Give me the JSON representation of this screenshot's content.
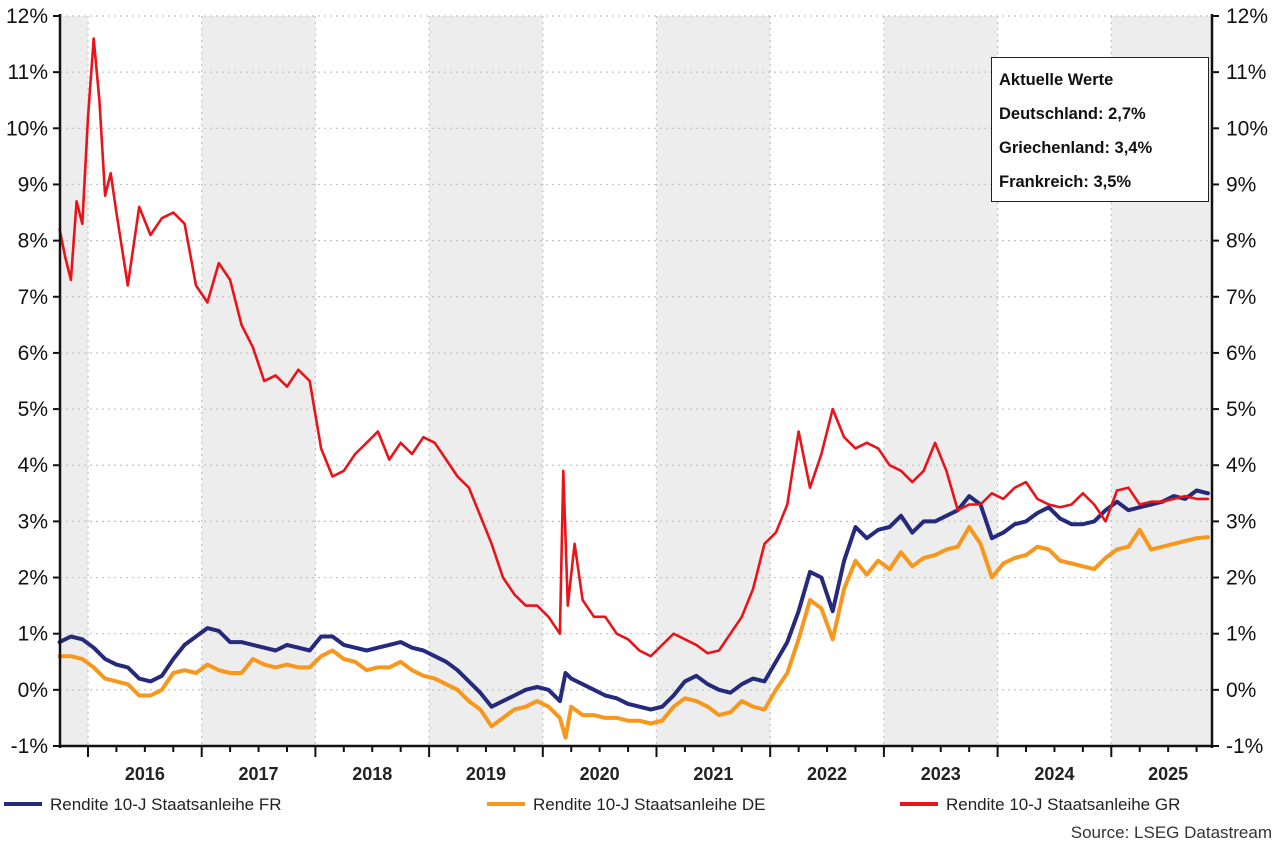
{
  "chart_data": {
    "type": "line",
    "title": "",
    "xlabel": "",
    "ylabel": "",
    "ylim": [
      -1,
      12
    ],
    "xlim": [
      2015.75,
      2025.88
    ],
    "y_ticks": [
      -1,
      0,
      1,
      2,
      3,
      4,
      5,
      6,
      7,
      8,
      9,
      10,
      11,
      12
    ],
    "y_tick_labels": [
      "-1%",
      "0%",
      "1%",
      "2%",
      "3%",
      "4%",
      "5%",
      "6%",
      "7%",
      "8%",
      "9%",
      "10%",
      "11%",
      "12%"
    ],
    "x_tick_labels": [
      "2016",
      "2017",
      "2018",
      "2019",
      "2020",
      "2021",
      "2022",
      "2023",
      "2024",
      "2025"
    ],
    "grid": true,
    "shaded_years": [
      2015,
      2017,
      2019,
      2021,
      2023,
      2025
    ],
    "legend_position": "bottom",
    "source": "Source: LSEG Datastream",
    "annotation": {
      "title": "Aktuelle Werte",
      "lines": [
        "Deutschland: 2,7%",
        "Griechenland: 3,4%",
        "Frankreich: 3,5%"
      ]
    },
    "series": [
      {
        "name": "Rendite 10-J Staatsanleihe FR",
        "color": "#262a7c",
        "x": [
          2015.75,
          2015.85,
          2015.95,
          2016.05,
          2016.15,
          2016.25,
          2016.35,
          2016.45,
          2016.55,
          2016.65,
          2016.75,
          2016.85,
          2016.95,
          2017.05,
          2017.15,
          2017.25,
          2017.35,
          2017.45,
          2017.55,
          2017.65,
          2017.75,
          2017.85,
          2017.95,
          2018.05,
          2018.15,
          2018.25,
          2018.35,
          2018.45,
          2018.55,
          2018.65,
          2018.75,
          2018.85,
          2018.95,
          2019.05,
          2019.15,
          2019.25,
          2019.35,
          2019.45,
          2019.55,
          2019.65,
          2019.75,
          2019.85,
          2019.95,
          2020.05,
          2020.15,
          2020.2,
          2020.25,
          2020.35,
          2020.45,
          2020.55,
          2020.65,
          2020.75,
          2020.85,
          2020.95,
          2021.05,
          2021.15,
          2021.25,
          2021.35,
          2021.45,
          2021.55,
          2021.65,
          2021.75,
          2021.85,
          2021.95,
          2022.05,
          2022.15,
          2022.25,
          2022.35,
          2022.45,
          2022.55,
          2022.65,
          2022.75,
          2022.85,
          2022.95,
          2023.05,
          2023.15,
          2023.25,
          2023.35,
          2023.45,
          2023.55,
          2023.65,
          2023.75,
          2023.85,
          2023.95,
          2024.05,
          2024.15,
          2024.25,
          2024.35,
          2024.45,
          2024.55,
          2024.65,
          2024.75,
          2024.85,
          2024.95,
          2025.05,
          2025.15,
          2025.25,
          2025.35,
          2025.45,
          2025.55,
          2025.65,
          2025.75,
          2025.85
        ],
        "values": [
          0.85,
          0.95,
          0.9,
          0.75,
          0.55,
          0.45,
          0.4,
          0.2,
          0.15,
          0.25,
          0.55,
          0.8,
          0.95,
          1.1,
          1.05,
          0.85,
          0.85,
          0.8,
          0.75,
          0.7,
          0.8,
          0.75,
          0.7,
          0.95,
          0.95,
          0.8,
          0.75,
          0.7,
          0.75,
          0.8,
          0.85,
          0.75,
          0.7,
          0.6,
          0.5,
          0.35,
          0.15,
          -0.05,
          -0.3,
          -0.2,
          -0.1,
          0.0,
          0.05,
          0.0,
          -0.2,
          0.3,
          0.2,
          0.1,
          0.0,
          -0.1,
          -0.15,
          -0.25,
          -0.3,
          -0.35,
          -0.3,
          -0.1,
          0.15,
          0.25,
          0.1,
          0.0,
          -0.05,
          0.1,
          0.2,
          0.15,
          0.5,
          0.85,
          1.4,
          2.1,
          2.0,
          1.4,
          2.3,
          2.9,
          2.7,
          2.85,
          2.9,
          3.1,
          2.8,
          3.0,
          3.0,
          3.1,
          3.2,
          3.45,
          3.3,
          2.7,
          2.8,
          2.95,
          3.0,
          3.15,
          3.25,
          3.05,
          2.95,
          2.95,
          3.0,
          3.2,
          3.35,
          3.2,
          3.25,
          3.3,
          3.35,
          3.45,
          3.4,
          3.55,
          3.5
        ]
      },
      {
        "name": "Rendite 10-J Staatsanleihe DE",
        "color": "#f7971e",
        "x": [
          2015.75,
          2015.85,
          2015.95,
          2016.05,
          2016.15,
          2016.25,
          2016.35,
          2016.45,
          2016.55,
          2016.65,
          2016.75,
          2016.85,
          2016.95,
          2017.05,
          2017.15,
          2017.25,
          2017.35,
          2017.45,
          2017.55,
          2017.65,
          2017.75,
          2017.85,
          2017.95,
          2018.05,
          2018.15,
          2018.25,
          2018.35,
          2018.45,
          2018.55,
          2018.65,
          2018.75,
          2018.85,
          2018.95,
          2019.05,
          2019.15,
          2019.25,
          2019.35,
          2019.45,
          2019.55,
          2019.65,
          2019.75,
          2019.85,
          2019.95,
          2020.05,
          2020.15,
          2020.2,
          2020.25,
          2020.35,
          2020.45,
          2020.55,
          2020.65,
          2020.75,
          2020.85,
          2020.95,
          2021.05,
          2021.15,
          2021.25,
          2021.35,
          2021.45,
          2021.55,
          2021.65,
          2021.75,
          2021.85,
          2021.95,
          2022.05,
          2022.15,
          2022.25,
          2022.35,
          2022.45,
          2022.55,
          2022.65,
          2022.75,
          2022.85,
          2022.95,
          2023.05,
          2023.15,
          2023.25,
          2023.35,
          2023.45,
          2023.55,
          2023.65,
          2023.75,
          2023.85,
          2023.95,
          2024.05,
          2024.15,
          2024.25,
          2024.35,
          2024.45,
          2024.55,
          2024.65,
          2024.75,
          2024.85,
          2024.95,
          2025.05,
          2025.15,
          2025.25,
          2025.35,
          2025.45,
          2025.55,
          2025.65,
          2025.75,
          2025.85
        ],
        "values": [
          0.6,
          0.6,
          0.55,
          0.4,
          0.2,
          0.15,
          0.1,
          -0.1,
          -0.1,
          0.0,
          0.3,
          0.35,
          0.3,
          0.45,
          0.35,
          0.3,
          0.3,
          0.55,
          0.45,
          0.4,
          0.45,
          0.4,
          0.4,
          0.6,
          0.7,
          0.55,
          0.5,
          0.35,
          0.4,
          0.4,
          0.5,
          0.35,
          0.25,
          0.2,
          0.1,
          0.0,
          -0.2,
          -0.35,
          -0.65,
          -0.5,
          -0.35,
          -0.3,
          -0.2,
          -0.3,
          -0.5,
          -0.85,
          -0.3,
          -0.45,
          -0.45,
          -0.5,
          -0.5,
          -0.55,
          -0.55,
          -0.6,
          -0.55,
          -0.3,
          -0.15,
          -0.2,
          -0.3,
          -0.45,
          -0.4,
          -0.2,
          -0.3,
          -0.35,
          0.0,
          0.3,
          0.9,
          1.6,
          1.45,
          0.9,
          1.8,
          2.3,
          2.05,
          2.3,
          2.15,
          2.45,
          2.2,
          2.35,
          2.4,
          2.5,
          2.55,
          2.9,
          2.6,
          2.0,
          2.25,
          2.35,
          2.4,
          2.55,
          2.5,
          2.3,
          2.25,
          2.2,
          2.15,
          2.35,
          2.5,
          2.55,
          2.85,
          2.5,
          2.55,
          2.6,
          2.65,
          2.7,
          2.72
        ]
      },
      {
        "name": "Rendite 10-J Staatsanleihe GR",
        "color": "#e8141a",
        "x": [
          2015.75,
          2015.8,
          2015.85,
          2015.9,
          2015.95,
          2016.0,
          2016.05,
          2016.1,
          2016.15,
          2016.2,
          2016.25,
          2016.35,
          2016.45,
          2016.55,
          2016.65,
          2016.75,
          2016.85,
          2016.95,
          2017.05,
          2017.15,
          2017.25,
          2017.35,
          2017.45,
          2017.55,
          2017.65,
          2017.75,
          2017.85,
          2017.95,
          2018.05,
          2018.15,
          2018.25,
          2018.35,
          2018.45,
          2018.55,
          2018.65,
          2018.75,
          2018.85,
          2018.95,
          2019.05,
          2019.15,
          2019.25,
          2019.35,
          2019.45,
          2019.55,
          2019.65,
          2019.75,
          2019.85,
          2019.95,
          2020.05,
          2020.15,
          2020.18,
          2020.22,
          2020.28,
          2020.35,
          2020.45,
          2020.55,
          2020.65,
          2020.75,
          2020.85,
          2020.95,
          2021.05,
          2021.15,
          2021.25,
          2021.35,
          2021.45,
          2021.55,
          2021.65,
          2021.75,
          2021.85,
          2021.95,
          2022.05,
          2022.15,
          2022.25,
          2022.35,
          2022.45,
          2022.55,
          2022.65,
          2022.75,
          2022.85,
          2022.95,
          2023.05,
          2023.15,
          2023.25,
          2023.35,
          2023.45,
          2023.55,
          2023.65,
          2023.75,
          2023.85,
          2023.95,
          2024.05,
          2024.15,
          2024.25,
          2024.35,
          2024.45,
          2024.55,
          2024.65,
          2024.75,
          2024.85,
          2024.95,
          2025.05,
          2025.15,
          2025.25,
          2025.35,
          2025.45,
          2025.55,
          2025.65,
          2025.75,
          2025.85
        ],
        "values": [
          8.2,
          7.7,
          7.3,
          8.7,
          8.3,
          10.2,
          11.6,
          10.5,
          8.8,
          9.2,
          8.5,
          7.2,
          8.6,
          8.1,
          8.4,
          8.5,
          8.3,
          7.2,
          6.9,
          7.6,
          7.3,
          6.5,
          6.1,
          5.5,
          5.6,
          5.4,
          5.7,
          5.5,
          4.3,
          3.8,
          3.9,
          4.2,
          4.4,
          4.6,
          4.1,
          4.4,
          4.2,
          4.5,
          4.4,
          4.1,
          3.8,
          3.6,
          3.1,
          2.6,
          2.0,
          1.7,
          1.5,
          1.5,
          1.3,
          1.0,
          3.9,
          1.5,
          2.6,
          1.6,
          1.3,
          1.3,
          1.0,
          0.9,
          0.7,
          0.6,
          0.8,
          1.0,
          0.9,
          0.8,
          0.65,
          0.7,
          1.0,
          1.3,
          1.8,
          2.6,
          2.8,
          3.3,
          4.6,
          3.6,
          4.2,
          5.0,
          4.5,
          4.3,
          4.4,
          4.3,
          4.0,
          3.9,
          3.7,
          3.9,
          4.4,
          3.9,
          3.2,
          3.3,
          3.3,
          3.5,
          3.4,
          3.6,
          3.7,
          3.4,
          3.3,
          3.25,
          3.3,
          3.5,
          3.3,
          3.0,
          3.55,
          3.6,
          3.3,
          3.35,
          3.35,
          3.4,
          3.45,
          3.4,
          3.4
        ]
      }
    ]
  }
}
